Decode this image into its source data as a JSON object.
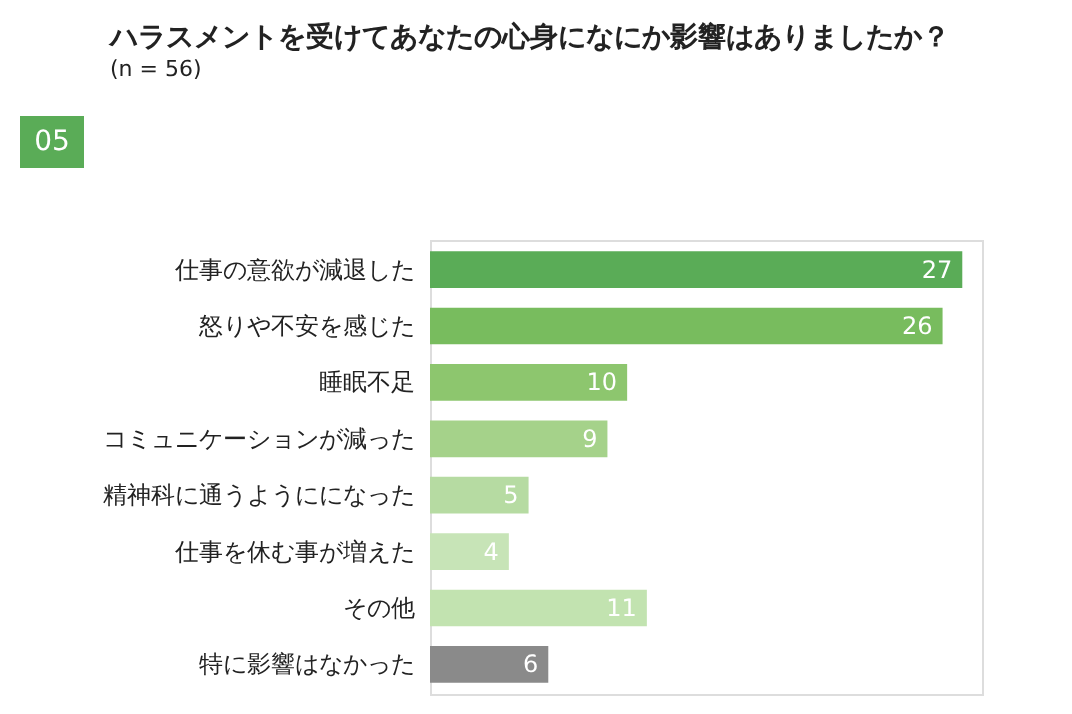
{
  "chart_data": {
    "type": "bar",
    "orientation": "horizontal",
    "title": "ハラスメントを受けてあなたの心身になにか影響はありましたか？",
    "subtitle": "(n = 56)",
    "annotations": [
      "05"
    ],
    "categories": [
      "仕事の意欲が減退した",
      "怒りや不安を感じた",
      "睡眠不足",
      "コミュニケーションが減った",
      "精神科に通うようにになった",
      "仕事を休む事が増えた",
      "その他",
      "特に影響はなかった"
    ],
    "values": [
      27,
      26,
      10,
      9,
      5,
      4,
      11,
      6
    ],
    "colors": [
      "#5aac57",
      "#78bc5e",
      "#8dc66e",
      "#a5d28a",
      "#b6dba2",
      "#c7e4b7",
      "#c2e3b0",
      "#8a8a8a"
    ],
    "xlim": [
      0,
      28
    ],
    "data_labels": true,
    "tick_labels": "y",
    "grid": false
  }
}
